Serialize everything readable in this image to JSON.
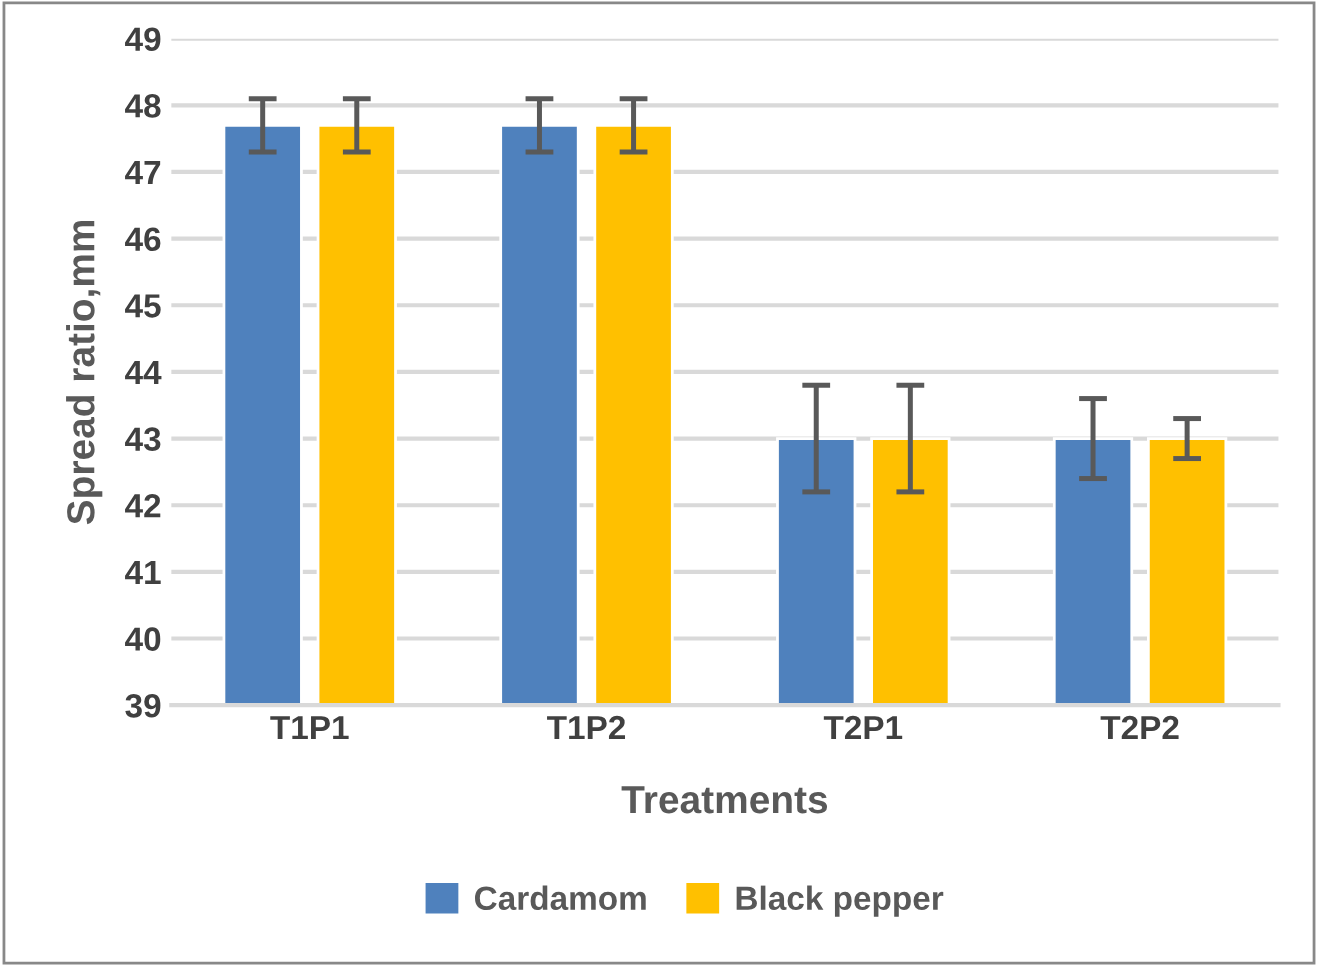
{
  "chart_data": {
    "type": "bar",
    "xlabel": "Treatments",
    "ylabel": "Spread ratio,mm",
    "categories": [
      "T1P1",
      "T1P2",
      "T2P1",
      "T2P2"
    ],
    "series": [
      {
        "name": "Cardamom",
        "color": "#4f81bd",
        "values": [
          47.7,
          47.7,
          43.0,
          43.0
        ],
        "errors": [
          0.4,
          0.4,
          0.8,
          0.6
        ]
      },
      {
        "name": "Black pepper",
        "color": "#ffc000",
        "values": [
          47.7,
          47.7,
          43.0,
          43.0
        ],
        "errors": [
          0.4,
          0.4,
          0.8,
          0.3
        ]
      }
    ],
    "ylim": [
      39,
      49
    ],
    "yticks": [
      39,
      40,
      41,
      42,
      43,
      44,
      45,
      46,
      47,
      48,
      49
    ],
    "grid": "y",
    "legend": "bottom"
  }
}
